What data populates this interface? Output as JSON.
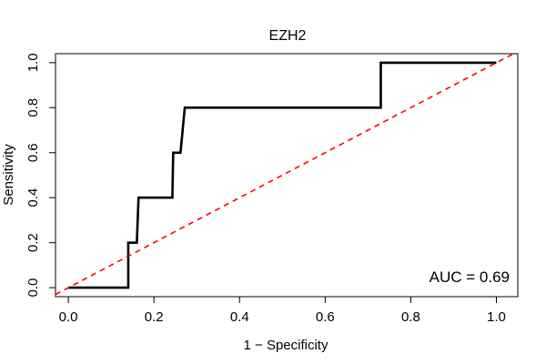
{
  "chart_data": {
    "type": "line",
    "title": "EZH2",
    "xlabel": "1 − Specificity",
    "ylabel": "Sensitivity",
    "xlim": [
      -0.03,
      1.05
    ],
    "ylim": [
      -0.04,
      1.04
    ],
    "xticks": [
      0.0,
      0.2,
      0.4,
      0.6,
      0.8,
      1.0
    ],
    "xtick_labels": [
      "0.0",
      "0.2",
      "0.4",
      "0.6",
      "0.8",
      "1.0"
    ],
    "yticks": [
      0.0,
      0.2,
      0.4,
      0.6,
      0.8,
      1.0
    ],
    "ytick_labels": [
      "0.0",
      "0.2",
      "0.4",
      "0.6",
      "0.8",
      "1.0"
    ],
    "grid": false,
    "series": [
      {
        "style": "solid",
        "color": "#000000",
        "x": [
          0.0,
          0.14,
          0.14,
          0.15,
          0.16,
          0.164,
          0.243,
          0.245,
          0.262,
          0.272,
          0.3,
          0.73,
          0.73,
          1.0
        ],
        "y": [
          0.0,
          0.0,
          0.2,
          0.2,
          0.2,
          0.4,
          0.4,
          0.6,
          0.6,
          0.8,
          0.8,
          0.8,
          1.0,
          1.0
        ]
      },
      {
        "style": "dashed",
        "color": "#ff0000",
        "x": [
          -0.03,
          1.05
        ],
        "y": [
          -0.03,
          1.05
        ]
      }
    ],
    "annotations": [
      {
        "text": "AUC = 0.69"
      }
    ]
  }
}
